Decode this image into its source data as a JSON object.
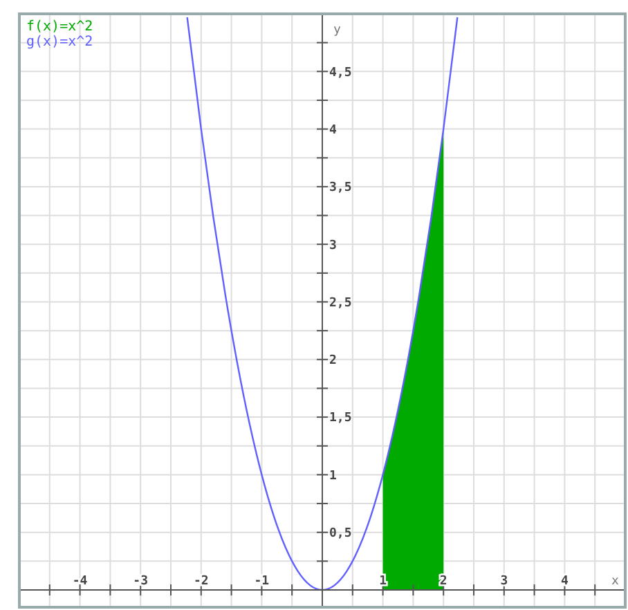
{
  "chart_data": {
    "type": "line",
    "xlabel": "x",
    "ylabel": "y",
    "legend": "top left",
    "grid": true,
    "xlim": [
      -5,
      5
    ],
    "ylim": [
      -0.15,
      5
    ],
    "xticks": [
      {
        "value": -4.5,
        "label": null
      },
      -4,
      {
        "value": -3.5,
        "label": null
      },
      -3,
      {
        "value": -2.5,
        "label": null
      },
      -2,
      {
        "value": -1.5,
        "label": null
      },
      -1,
      {
        "value": -0.5,
        "label": null
      },
      {
        "value": 0.5,
        "label": null
      },
      1,
      {
        "value": 1.5,
        "label": null
      },
      2,
      {
        "value": 2.5,
        "label": null
      },
      3,
      {
        "value": 3.5,
        "label": null
      },
      4,
      {
        "value": 4.5,
        "label": null
      }
    ],
    "yticks": [
      {
        "value": 0.25,
        "label": null
      },
      {
        "value": 0.5,
        "label": "0,5"
      },
      {
        "value": 0.75,
        "label": null
      },
      1,
      {
        "value": 1.25,
        "label": null
      },
      {
        "value": 1.5,
        "label": "1,5"
      },
      {
        "value": 1.75,
        "label": null
      },
      2,
      {
        "value": 2.25,
        "label": null
      },
      {
        "value": 2.5,
        "label": "2,5"
      },
      {
        "value": 2.75,
        "label": null
      },
      3,
      {
        "value": 3.25,
        "label": null
      },
      {
        "value": 3.5,
        "label": "3,5"
      },
      {
        "value": 3.75,
        "label": null
      },
      4,
      {
        "value": 4.25,
        "label": null
      },
      {
        "value": 4.5,
        "label": "4,5"
      },
      {
        "value": 4.75,
        "label": null
      }
    ],
    "series": [
      {
        "name": "f(x)=x^2",
        "type": "area",
        "color": "#00aa00",
        "x": [
          1,
          1.1,
          1.2,
          1.3,
          1.4,
          1.5,
          1.6,
          1.7,
          1.8,
          1.9,
          2
        ],
        "values": [
          1,
          1.21,
          1.44,
          1.69,
          1.96,
          2.25,
          2.56,
          2.89,
          3.24,
          3.61,
          4
        ]
      },
      {
        "name": "g(x)=x^2",
        "color": "#6060ff",
        "x": [
          -2.23,
          -2,
          -1.8,
          -1.6,
          -1.4,
          -1.2,
          -1,
          -0.8,
          -0.6,
          -0.4,
          -0.2,
          0,
          0.2,
          0.4,
          0.6,
          0.8,
          1,
          1.2,
          1.4,
          1.6,
          1.8,
          2,
          2.23
        ],
        "values": [
          4.97,
          4,
          3.24,
          2.56,
          1.96,
          1.44,
          1,
          0.64,
          0.36,
          0.16,
          0.04,
          0,
          0.04,
          0.16,
          0.36,
          0.64,
          1,
          1.44,
          1.96,
          2.56,
          3.24,
          4,
          4.97
        ]
      }
    ]
  }
}
